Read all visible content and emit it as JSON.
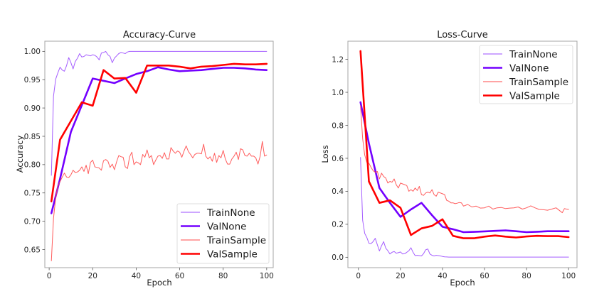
{
  "colors": {
    "train_none": "#9b4dff",
    "val_none": "#7300ff",
    "train_sample": "#ff4a4a",
    "val_sample": "#ff0000",
    "axis": "#a6a6a6"
  },
  "chart_data": [
    {
      "type": "line",
      "title": "Accuracy-Curve",
      "xlabel": "Epoch",
      "ylabel": "Accuracy",
      "xlim": [
        -2,
        103
      ],
      "ylim": [
        0.618,
        1.018
      ],
      "xticks": [
        0,
        20,
        40,
        60,
        80,
        100
      ],
      "xtick_labels": [
        "0",
        "20",
        "40",
        "60",
        "80",
        "100"
      ],
      "yticks": [
        0.65,
        0.7,
        0.75,
        0.8,
        0.85,
        0.9,
        0.95,
        1.0
      ],
      "ytick_labels": [
        "0.65",
        "0.70",
        "0.75",
        "0.80",
        "0.85",
        "0.90",
        "0.95",
        "1.00"
      ],
      "grid": false,
      "legend_position": "lower-right",
      "series": [
        {
          "name": "TrainNone",
          "color_key": "train_none",
          "width": 1,
          "x": [
            1,
            2,
            3,
            4,
            5,
            6,
            7,
            8,
            9,
            10,
            11,
            12,
            13,
            14,
            15,
            16,
            17,
            18,
            19,
            20,
            21,
            22,
            23,
            24,
            25,
            26,
            27,
            28,
            29,
            30,
            31,
            32,
            33,
            34,
            35,
            36,
            37,
            38,
            39,
            40,
            41,
            42,
            43,
            44,
            45,
            46,
            47,
            48,
            49,
            50,
            55,
            60,
            65,
            70,
            75,
            80,
            85,
            90,
            95,
            100
          ],
          "y": [
            0.781,
            0.921,
            0.951,
            0.962,
            0.972,
            0.967,
            0.965,
            0.975,
            0.989,
            0.98,
            0.969,
            0.982,
            0.988,
            0.996,
            0.99,
            0.991,
            0.994,
            0.993,
            0.992,
            0.994,
            0.993,
            0.99,
            0.985,
            0.997,
            0.998,
            1.0,
            0.994,
            0.991,
            0.98,
            0.988,
            0.992,
            0.996,
            0.998,
            0.997,
            0.996,
            0.999,
            1.0,
            1.0,
            1.0,
            1.0,
            1.0,
            1.0,
            1.0,
            1.0,
            1.0,
            1.0,
            1.0,
            1.0,
            1.0,
            1.0,
            1.0,
            1.0,
            1.0,
            1.0,
            1.0,
            1.0,
            1.0,
            1.0,
            1.0,
            1.0
          ]
        },
        {
          "name": "ValNone",
          "color_key": "val_none",
          "width": 2.6,
          "x": [
            1,
            5,
            10,
            15,
            20,
            25,
            30,
            35,
            40,
            45,
            50,
            55,
            60,
            65,
            70,
            75,
            80,
            85,
            90,
            95,
            100
          ],
          "y": [
            0.714,
            0.775,
            0.858,
            0.905,
            0.952,
            0.948,
            0.944,
            0.952,
            0.96,
            0.965,
            0.972,
            0.968,
            0.965,
            0.966,
            0.967,
            0.969,
            0.971,
            0.971,
            0.97,
            0.968,
            0.967
          ]
        },
        {
          "name": "TrainSample",
          "color_key": "train_sample",
          "width": 1,
          "x": [
            1,
            2,
            3,
            4,
            5,
            6,
            7,
            8,
            9,
            10,
            11,
            12,
            13,
            14,
            15,
            16,
            17,
            18,
            19,
            20,
            21,
            22,
            23,
            24,
            25,
            26,
            27,
            28,
            29,
            30,
            31,
            32,
            33,
            34,
            35,
            36,
            37,
            38,
            39,
            40,
            41,
            42,
            43,
            44,
            45,
            46,
            47,
            48,
            49,
            50,
            51,
            52,
            53,
            54,
            55,
            56,
            57,
            58,
            59,
            60,
            61,
            62,
            63,
            64,
            65,
            66,
            67,
            68,
            69,
            70,
            71,
            72,
            73,
            74,
            75,
            76,
            77,
            78,
            79,
            80,
            81,
            82,
            83,
            84,
            85,
            86,
            87,
            88,
            89,
            90,
            91,
            92,
            93,
            94,
            95,
            96,
            97,
            98,
            99,
            100
          ],
          "y": [
            0.63,
            0.705,
            0.742,
            0.762,
            0.77,
            0.778,
            0.785,
            0.778,
            0.777,
            0.782,
            0.79,
            0.786,
            0.787,
            0.79,
            0.796,
            0.788,
            0.799,
            0.784,
            0.804,
            0.808,
            0.796,
            0.795,
            0.794,
            0.79,
            0.807,
            0.809,
            0.806,
            0.795,
            0.801,
            0.791,
            0.805,
            0.816,
            0.814,
            0.813,
            0.796,
            0.793,
            0.814,
            0.822,
            0.8,
            0.805,
            0.803,
            0.8,
            0.818,
            0.813,
            0.826,
            0.812,
            0.816,
            0.8,
            0.808,
            0.815,
            0.816,
            0.811,
            0.821,
            0.81,
            0.81,
            0.83,
            0.824,
            0.82,
            0.824,
            0.822,
            0.813,
            0.824,
            0.833,
            0.823,
            0.818,
            0.812,
            0.818,
            0.82,
            0.82,
            0.819,
            0.836,
            0.815,
            0.81,
            0.814,
            0.806,
            0.82,
            0.804,
            0.816,
            0.812,
            0.825,
            0.81,
            0.801,
            0.801,
            0.81,
            0.815,
            0.822,
            0.809,
            0.828,
            0.826,
            0.816,
            0.815,
            0.82,
            0.815,
            0.815,
            0.812,
            0.801,
            0.815,
            0.841,
            0.815,
            0.817
          ]
        },
        {
          "name": "ValSample",
          "color_key": "val_sample",
          "width": 2.6,
          "x": [
            1,
            5,
            10,
            15,
            20,
            25,
            30,
            35,
            40,
            45,
            50,
            55,
            60,
            65,
            70,
            75,
            80,
            85,
            90,
            95,
            100
          ],
          "y": [
            0.735,
            0.844,
            0.877,
            0.91,
            0.904,
            0.967,
            0.952,
            0.953,
            0.927,
            0.975,
            0.975,
            0.975,
            0.973,
            0.97,
            0.973,
            0.974,
            0.976,
            0.978,
            0.977,
            0.977,
            0.978
          ]
        }
      ]
    },
    {
      "type": "line",
      "title": "Loss-Curve",
      "xlabel": "Epoch",
      "ylabel": "Loss",
      "xlim": [
        -5,
        104
      ],
      "ylim": [
        -0.063,
        1.31
      ],
      "xticks": [
        0,
        20,
        40,
        60,
        80,
        100
      ],
      "xtick_labels": [
        "0",
        "20",
        "40",
        "60",
        "80",
        "100"
      ],
      "yticks": [
        0.0,
        0.2,
        0.4,
        0.6,
        0.8,
        1.0,
        1.2
      ],
      "ytick_labels": [
        "0.0",
        "0.2",
        "0.4",
        "0.6",
        "0.8",
        "1.0",
        "1.2"
      ],
      "grid": false,
      "legend_position": "upper-right",
      "series": [
        {
          "name": "TrainNone",
          "color_key": "train_none",
          "width": 1,
          "x": [
            1,
            2,
            3,
            4,
            5,
            6,
            7,
            8,
            9,
            10,
            11,
            12,
            13,
            14,
            15,
            16,
            17,
            18,
            19,
            20,
            21,
            22,
            23,
            24,
            25,
            26,
            27,
            28,
            29,
            30,
            31,
            32,
            33,
            34,
            35,
            36,
            37,
            38,
            39,
            40,
            41,
            42,
            43,
            44,
            45,
            50,
            60,
            70,
            80,
            90,
            100
          ],
          "y": [
            0.605,
            0.225,
            0.145,
            0.12,
            0.085,
            0.083,
            0.095,
            0.115,
            0.075,
            0.038,
            0.07,
            0.095,
            0.055,
            0.04,
            0.02,
            0.03,
            0.035,
            0.025,
            0.028,
            0.032,
            0.02,
            0.022,
            0.03,
            0.04,
            0.058,
            0.03,
            0.01,
            0.012,
            0.01,
            0.008,
            0.022,
            0.045,
            0.05,
            0.02,
            0.012,
            0.008,
            0.012,
            0.01,
            0.008,
            0.005,
            0.003,
            0.002,
            0.001,
            0.001,
            0.001,
            0.001,
            0.001,
            0.001,
            0.001,
            0.001,
            0.001
          ]
        },
        {
          "name": "ValNone",
          "color_key": "val_none",
          "width": 2.6,
          "x": [
            1,
            5,
            10,
            15,
            20,
            25,
            30,
            35,
            40,
            45,
            50,
            55,
            60,
            65,
            70,
            75,
            80,
            85,
            90,
            95,
            100
          ],
          "y": [
            0.94,
            0.69,
            0.42,
            0.33,
            0.245,
            0.29,
            0.33,
            0.255,
            0.185,
            0.17,
            0.152,
            0.154,
            0.157,
            0.16,
            0.163,
            0.158,
            0.152,
            0.155,
            0.158,
            0.158,
            0.158
          ]
        },
        {
          "name": "TrainSample",
          "color_key": "train_sample",
          "width": 1,
          "x": [
            1,
            2,
            3,
            4,
            5,
            6,
            7,
            8,
            9,
            10,
            11,
            12,
            13,
            14,
            15,
            16,
            17,
            18,
            19,
            20,
            21,
            22,
            23,
            24,
            25,
            26,
            27,
            28,
            29,
            30,
            31,
            32,
            33,
            34,
            35,
            36,
            37,
            38,
            39,
            40,
            41,
            42,
            43,
            44,
            45,
            46,
            47,
            48,
            49,
            50,
            52,
            54,
            56,
            58,
            60,
            62,
            64,
            66,
            68,
            70,
            72,
            74,
            76,
            78,
            80,
            82,
            84,
            86,
            88,
            90,
            92,
            94,
            96,
            97,
            98,
            99,
            100
          ],
          "y": [
            0.92,
            0.72,
            0.62,
            0.575,
            0.57,
            0.545,
            0.525,
            0.515,
            0.52,
            0.475,
            0.51,
            0.49,
            0.48,
            0.45,
            0.46,
            0.455,
            0.475,
            0.44,
            0.42,
            0.45,
            0.445,
            0.44,
            0.435,
            0.4,
            0.41,
            0.4,
            0.42,
            0.405,
            0.43,
            0.38,
            0.375,
            0.39,
            0.395,
            0.39,
            0.41,
            0.38,
            0.37,
            0.395,
            0.39,
            0.385,
            0.38,
            0.345,
            0.34,
            0.33,
            0.33,
            0.325,
            0.328,
            0.332,
            0.33,
            0.31,
            0.32,
            0.305,
            0.31,
            0.298,
            0.3,
            0.31,
            0.292,
            0.3,
            0.302,
            0.295,
            0.298,
            0.3,
            0.305,
            0.292,
            0.3,
            0.312,
            0.3,
            0.29,
            0.288,
            0.285,
            0.292,
            0.3,
            0.28,
            0.27,
            0.295,
            0.292,
            0.29
          ]
        },
        {
          "name": "ValSample",
          "color_key": "val_sample",
          "width": 2.6,
          "x": [
            1,
            5,
            10,
            15,
            20,
            25,
            30,
            35,
            40,
            45,
            50,
            55,
            60,
            65,
            70,
            75,
            80,
            85,
            90,
            95,
            100
          ],
          "y": [
            1.25,
            0.46,
            0.33,
            0.345,
            0.3,
            0.135,
            0.175,
            0.19,
            0.23,
            0.13,
            0.115,
            0.115,
            0.125,
            0.132,
            0.125,
            0.12,
            0.126,
            0.13,
            0.128,
            0.128,
            0.122
          ]
        }
      ]
    }
  ]
}
